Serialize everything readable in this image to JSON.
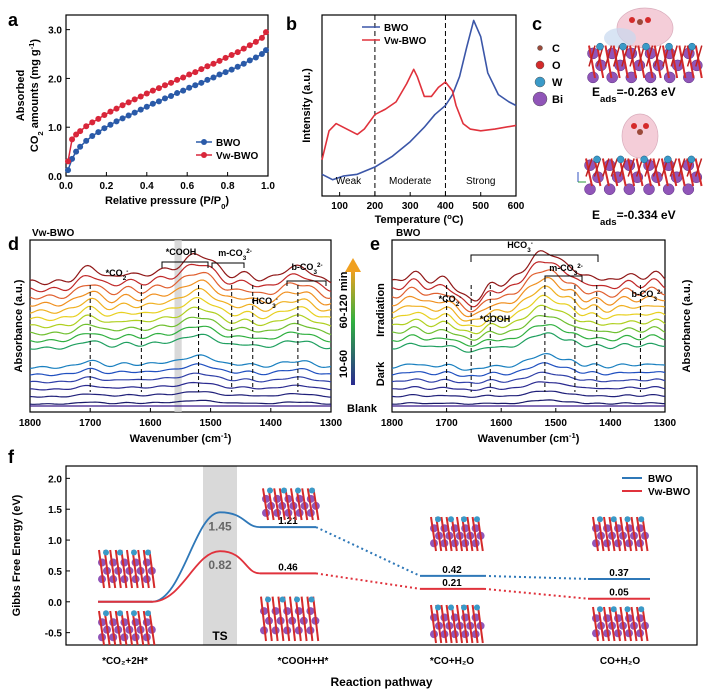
{
  "figure_title": "Multi-panel figure: CO2 adsorption, TPD, DFT adsorption, in-situ DRIFTS and Gibbs free energy",
  "chart_data": [
    {
      "id": "a",
      "type": "line",
      "panel_label": "a",
      "xlabel": "Relative pressure (P/P",
      "xlabel_sub": "0",
      "xlabel_tail": ")",
      "ylabel_line1": "Absorbed",
      "ylabel_line2": "CO",
      "ylabel_sub": "2",
      "ylabel_line2_tail": " amounts (mg g",
      "ylabel_sup": "-1",
      "ylabel_close": ")",
      "xlim": [
        0.0,
        1.0
      ],
      "ylim": [
        0.0,
        3.3
      ],
      "xticks": [
        "0.0",
        "0.2",
        "0.4",
        "0.6",
        "0.8",
        "1.0"
      ],
      "yticks": [
        "0.0",
        "1.0",
        "2.0",
        "3.0"
      ],
      "legend": [
        "BWO",
        "Vw-BWO"
      ],
      "series": [
        {
          "name": "BWO",
          "color": "#2a5aa8",
          "x": [
            0.01,
            0.03,
            0.05,
            0.07,
            0.1,
            0.13,
            0.16,
            0.19,
            0.22,
            0.25,
            0.28,
            0.31,
            0.34,
            0.37,
            0.4,
            0.43,
            0.46,
            0.49,
            0.52,
            0.55,
            0.58,
            0.61,
            0.64,
            0.67,
            0.7,
            0.73,
            0.76,
            0.79,
            0.82,
            0.85,
            0.88,
            0.91,
            0.94,
            0.97,
            0.99
          ],
          "y": [
            0.12,
            0.35,
            0.5,
            0.6,
            0.72,
            0.82,
            0.9,
            0.98,
            1.05,
            1.12,
            1.18,
            1.24,
            1.3,
            1.36,
            1.42,
            1.48,
            1.53,
            1.59,
            1.64,
            1.7,
            1.75,
            1.81,
            1.86,
            1.91,
            1.97,
            2.02,
            2.08,
            2.13,
            2.18,
            2.24,
            2.3,
            2.37,
            2.43,
            2.5,
            2.58
          ]
        },
        {
          "name": "Vw-BWO",
          "color": "#d9263a",
          "x": [
            0.01,
            0.03,
            0.05,
            0.07,
            0.1,
            0.13,
            0.16,
            0.19,
            0.22,
            0.25,
            0.28,
            0.31,
            0.34,
            0.37,
            0.4,
            0.43,
            0.46,
            0.49,
            0.52,
            0.55,
            0.58,
            0.61,
            0.64,
            0.67,
            0.7,
            0.73,
            0.76,
            0.79,
            0.82,
            0.85,
            0.88,
            0.91,
            0.94,
            0.97,
            0.99
          ],
          "y": [
            0.3,
            0.75,
            0.85,
            0.92,
            1.02,
            1.1,
            1.17,
            1.25,
            1.32,
            1.38,
            1.45,
            1.51,
            1.57,
            1.63,
            1.69,
            1.75,
            1.8,
            1.86,
            1.91,
            1.97,
            2.02,
            2.08,
            2.13,
            2.19,
            2.25,
            2.3,
            2.36,
            2.42,
            2.48,
            2.54,
            2.61,
            2.68,
            2.75,
            2.83,
            2.95
          ]
        }
      ]
    },
    {
      "id": "b",
      "type": "line",
      "panel_label": "b",
      "xlabel": "Temperature (",
      "xlabel_sup": "o",
      "xlabel_tail": "C)",
      "ylabel": "Intensity (a.u.)",
      "xlim": [
        50,
        600
      ],
      "xticks": [
        "100",
        "200",
        "300",
        "400",
        "500",
        "600"
      ],
      "dividers": [
        200,
        400
      ],
      "regions": [
        "Weak",
        "Moderate",
        "Strong"
      ],
      "legend": [
        "BWO",
        "Vw-BWO"
      ],
      "series": [
        {
          "name": "BWO",
          "color": "#3b56a8",
          "x": [
            50,
            80,
            110,
            150,
            200,
            250,
            300,
            340,
            370,
            400,
            420,
            440,
            460,
            480,
            500,
            520,
            550,
            580,
            600
          ],
          "y": [
            0.12,
            0.09,
            0.11,
            0.12,
            0.16,
            0.22,
            0.3,
            0.38,
            0.45,
            0.5,
            0.56,
            0.66,
            0.82,
            0.97,
            0.88,
            0.68,
            0.56,
            0.52,
            0.5
          ]
        },
        {
          "name": "Vw-BWO",
          "color": "#e0323c",
          "x": [
            50,
            70,
            90,
            110,
            130,
            150,
            170,
            200,
            230,
            260,
            290,
            310,
            320,
            340,
            360,
            380,
            400,
            420,
            430,
            450,
            470,
            500,
            540,
            600
          ],
          "y": [
            0.2,
            0.36,
            0.4,
            0.38,
            0.36,
            0.34,
            0.37,
            0.45,
            0.48,
            0.52,
            0.62,
            0.7,
            0.66,
            0.55,
            0.55,
            0.6,
            0.63,
            0.58,
            0.5,
            0.4,
            0.37,
            0.36,
            0.37,
            0.39
          ]
        }
      ]
    },
    {
      "id": "d",
      "type": "line",
      "panel_label": "d",
      "sample_title": "Vw-BWO",
      "xlabel": "Wavenumber (cm",
      "xlabel_sup": "-1",
      "xlabel_tail": ")",
      "ylabel": "Absorbance (a.u.)",
      "xlim": [
        1800,
        1300
      ],
      "xticks": [
        "1800",
        "1700",
        "1600",
        "1500",
        "1400",
        "1300"
      ],
      "peak_labels": [
        {
          "text": "*CO",
          "sub": "2",
          "sup": "-",
          "x": 1700
        },
        {
          "text": "*COOH",
          "x": 1590
        },
        {
          "text": "m-CO",
          "sub": "3",
          "sup": "2-",
          "x": 1500
        },
        {
          "text": "HCO",
          "sub": "3",
          "sup": "-",
          "x": 1435
        },
        {
          "text": "b-CO",
          "sub": "3",
          "sup": "2-",
          "x": 1355
        }
      ],
      "dashed_x": [
        1700,
        1615,
        1520,
        1465,
        1430,
        1355
      ],
      "shaded_x": [
        1560,
        1548
      ],
      "n_curves": 16
    },
    {
      "id": "e",
      "type": "line",
      "panel_label": "e",
      "sample_title": "BWO",
      "xlabel": "Wavenumber (cm",
      "xlabel_sup": "-1",
      "xlabel_tail": ")",
      "ylabel": "Absorbance (a.u.)",
      "xlim": [
        1800,
        1300
      ],
      "xticks": [
        "1800",
        "1700",
        "1600",
        "1500",
        "1400",
        "1300"
      ],
      "peak_labels": [
        {
          "text": "HCO",
          "sub": "3",
          "sup": "-",
          "x": 1540
        },
        {
          "text": "*CO",
          "sub": "2",
          "sup": "-",
          "x": 1710
        },
        {
          "text": "*COOH",
          "x": 1620
        },
        {
          "text": "m-CO",
          "sub": "3",
          "sup": "2-",
          "x": 1500
        },
        {
          "text": "b-CO",
          "sub": "3",
          "sup": "2-",
          "x": 1330
        }
      ],
      "dashed_x": [
        1700,
        1655,
        1620,
        1520,
        1465,
        1425,
        1345
      ],
      "n_curves": 16
    },
    {
      "id": "f",
      "type": "line",
      "panel_label": "f",
      "xlabel": "Reaction pathway",
      "ylabel": "Gibbs Free Energy (eV)",
      "ylim": [
        -0.7,
        2.2
      ],
      "yticks": [
        "-0.5",
        "0.0",
        "0.5",
        "1.0",
        "1.5",
        "2.0"
      ],
      "states": [
        "*CO₂+2H*",
        "*COOH+H*",
        "*CO+H₂O",
        "CO+H₂O"
      ],
      "ts_label": "TS",
      "legend": [
        "BWO",
        "Vw-BWO"
      ],
      "series": [
        {
          "name": "BWO",
          "color": "#2f78b8",
          "levels": [
            0.0,
            1.21,
            0.42,
            0.37
          ],
          "ts": 1.45,
          "labels": [
            "1.21",
            "0.42",
            "0.37"
          ],
          "ts_label": "1.45"
        },
        {
          "name": "Vw-BWO",
          "color": "#e0323c",
          "levels": [
            0.0,
            0.46,
            0.21,
            0.05
          ],
          "ts": 0.82,
          "labels": [
            "0.46",
            "0.21",
            "0.05"
          ],
          "ts_label": "0.82"
        }
      ]
    }
  ],
  "panel_c": {
    "label": "c",
    "legend": [
      {
        "symbol": "C",
        "color": "#9a4a3a"
      },
      {
        "symbol": "O",
        "color": "#d42a2a"
      },
      {
        "symbol": "W",
        "color": "#3a9ac8"
      },
      {
        "symbol": "Bi",
        "color": "#9055b8"
      }
    ],
    "eads_top": "=-0.263 eV",
    "eads_bottom": "=-0.334 eV",
    "eads_prefix": "E",
    "eads_sub": "ads"
  },
  "labels_de": {
    "time_axis": "60-120 min",
    "time_axis2": "10-60",
    "irradiation": "Irradiation",
    "dark": "Dark",
    "blank": "Blank"
  },
  "colors": {
    "blue": "#2a5aa8",
    "red": "#d9263a",
    "ts_band": "#d9d9d9"
  }
}
